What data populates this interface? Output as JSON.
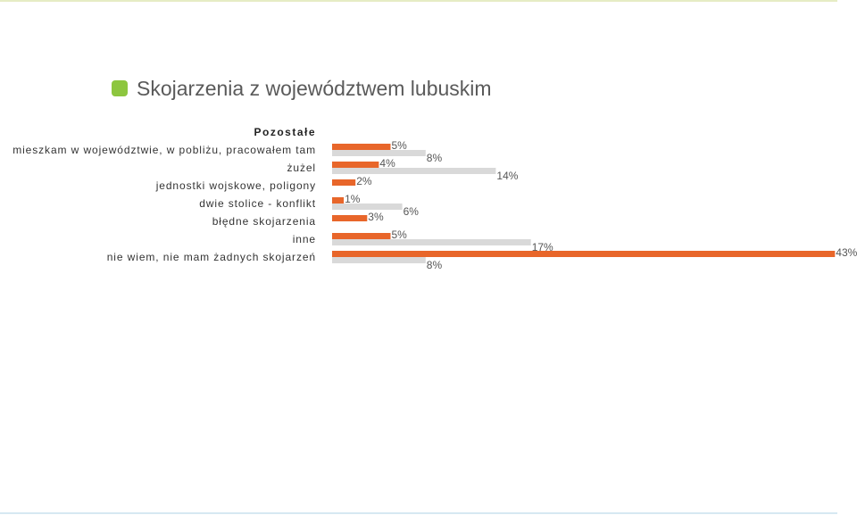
{
  "title": "Skojarzenia z województwem lubuskim",
  "colors": {
    "accent": "#8dc63f",
    "series1": "#e8662a",
    "series2": "#d9d9d9"
  },
  "chart_data": {
    "type": "bar",
    "orientation": "horizontal",
    "group_heading": "Pozostałe",
    "categories": [
      "mieszkam w województwie, w pobliżu, pracowałem tam",
      "żużel",
      "jednostki wojskowe, poligony",
      "dwie stolice - konflikt",
      "błędne skojarzenia",
      "inne",
      "nie wiem, nie mam żadnych skojarzeń"
    ],
    "series": [
      {
        "values": [
          5,
          4,
          2,
          1,
          3,
          5,
          43
        ],
        "labels": [
          "5%",
          "4%",
          "2%",
          "1%",
          "3%",
          "5%",
          "43%"
        ]
      },
      {
        "values": [
          8,
          14,
          0,
          6,
          0,
          17,
          8
        ],
        "labels": [
          "8%",
          "14%",
          "",
          "6%",
          "",
          "17%",
          "8%"
        ]
      }
    ],
    "unit": "%",
    "xlim": [
      0,
      43
    ],
    "legend": "none",
    "grid": false
  }
}
